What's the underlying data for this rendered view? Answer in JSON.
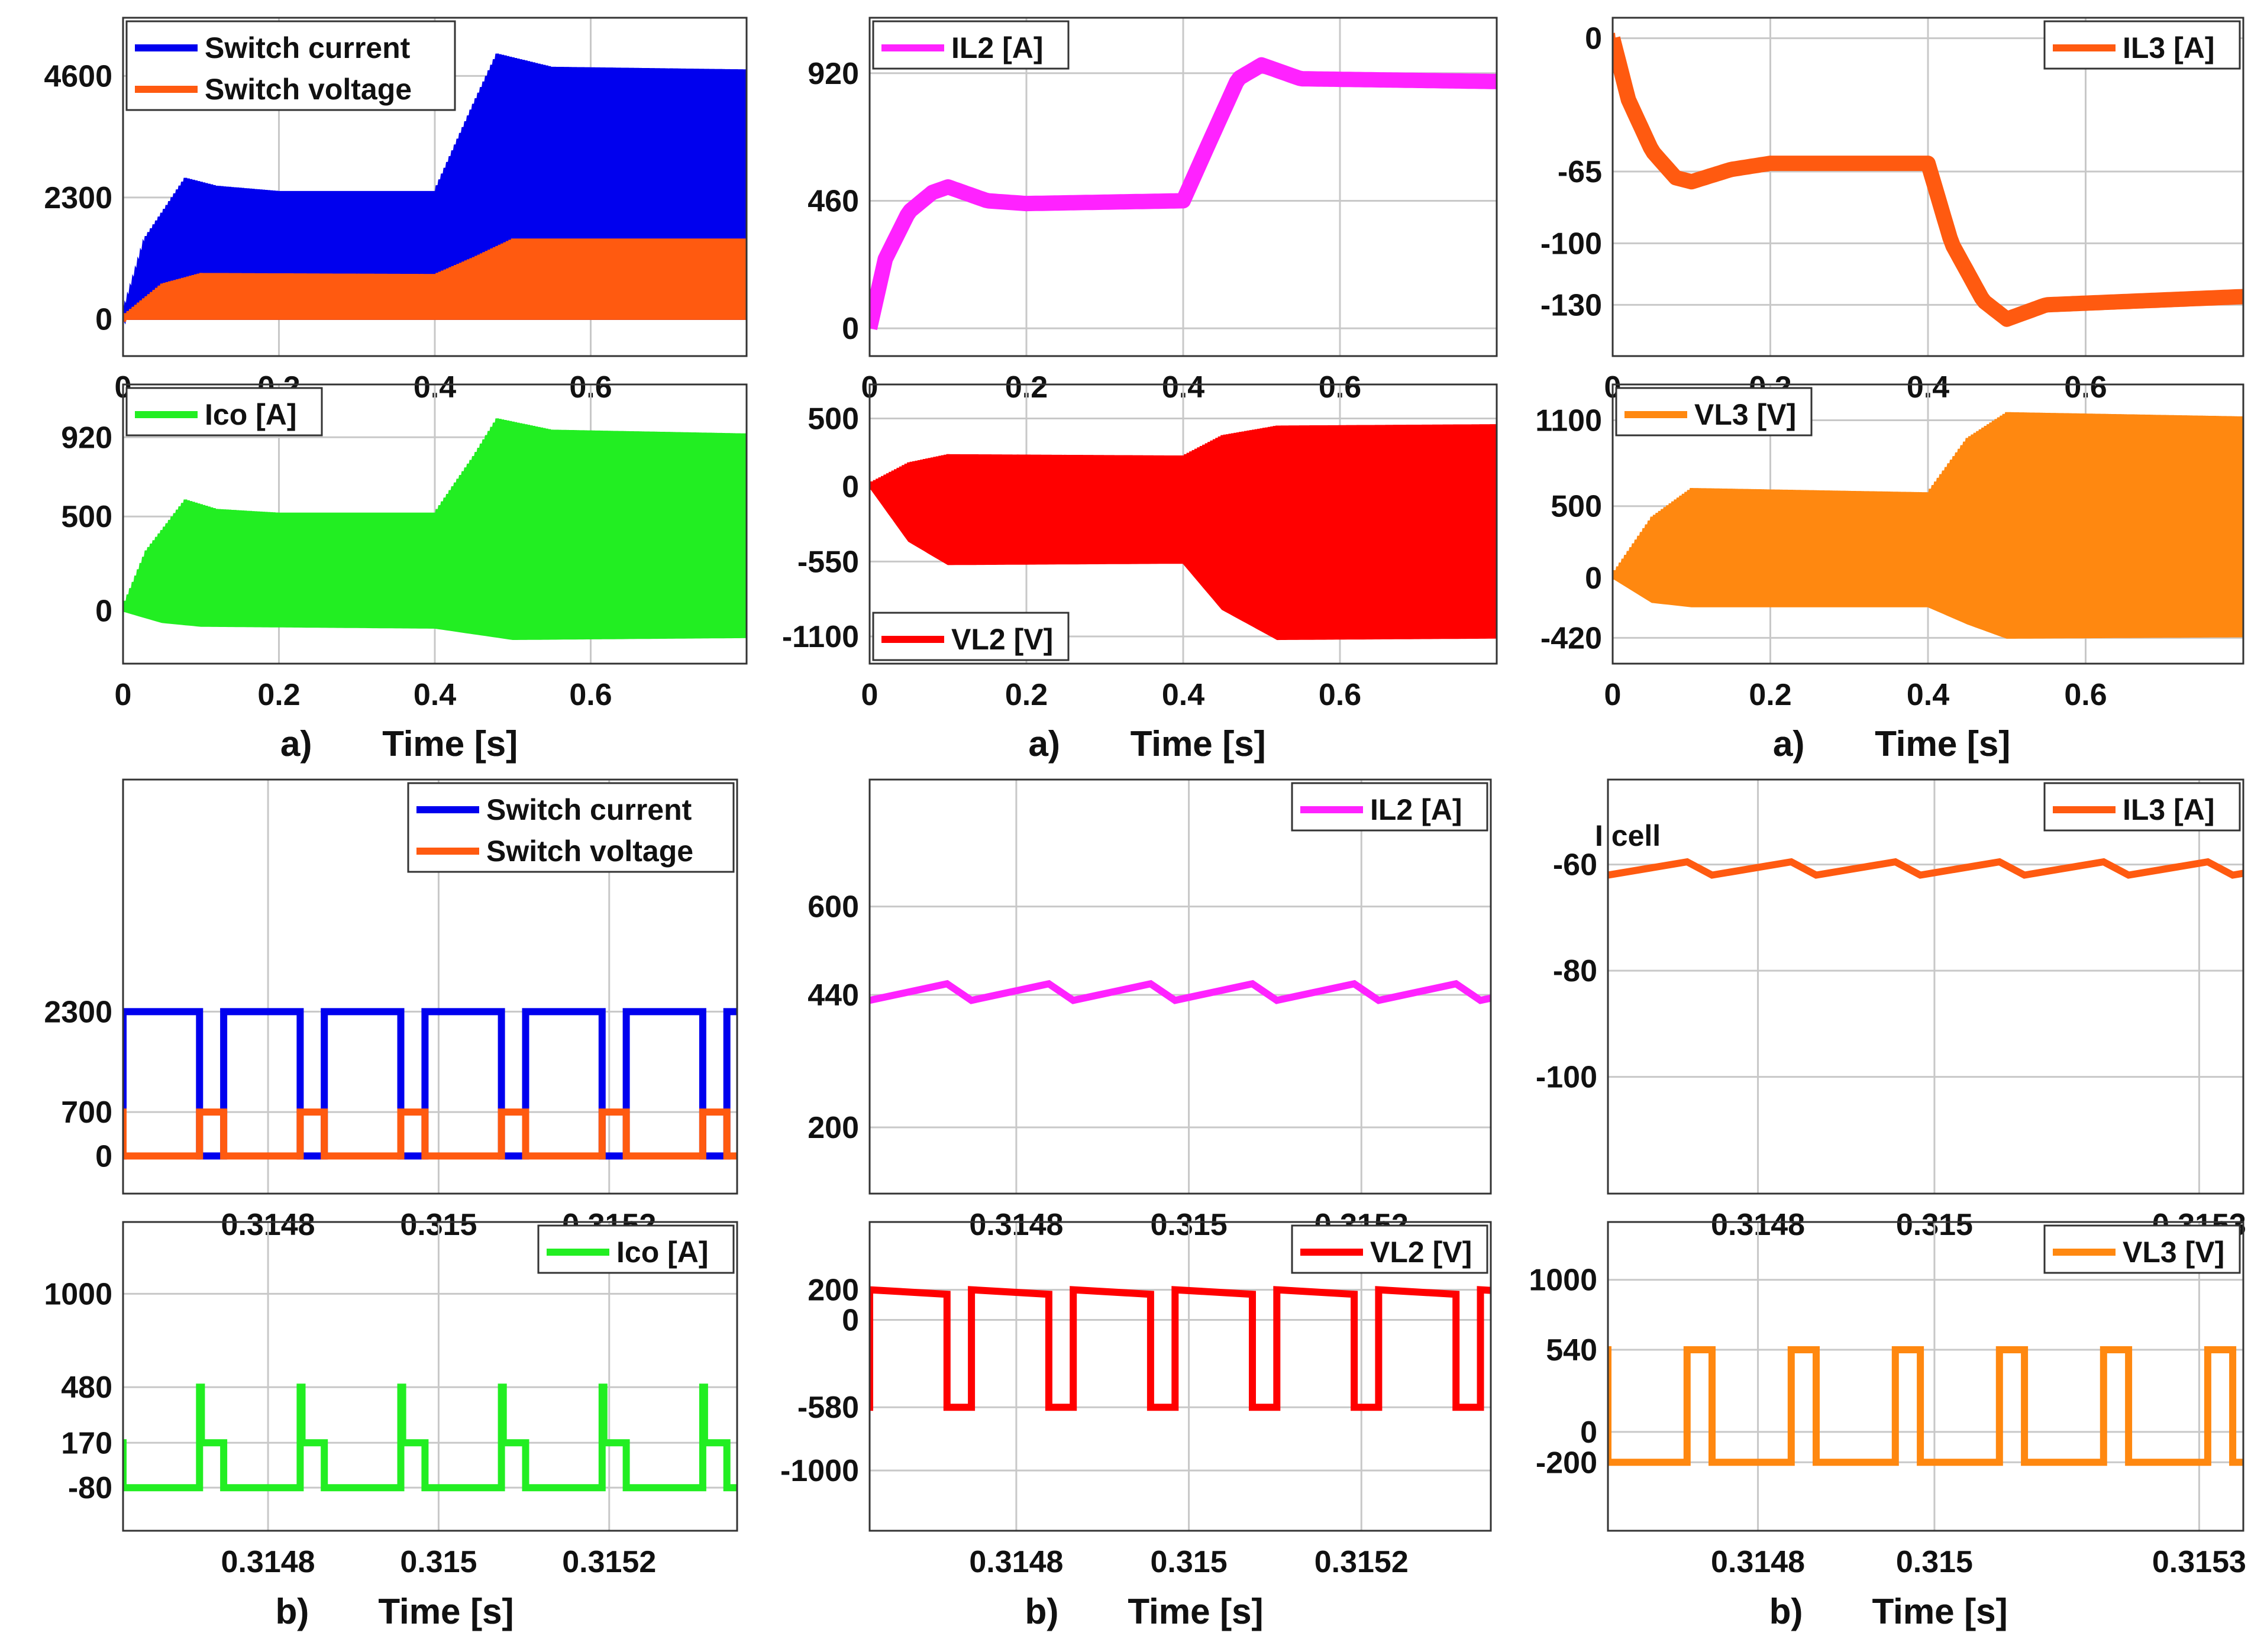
{
  "chart_data": [
    {
      "id": "a1",
      "type": "line",
      "xlim": [
        0,
        0.8
      ],
      "xticks": [
        0,
        0.2,
        0.4,
        0.6
      ],
      "xtick_labels": [
        "0",
        "0.2",
        "0.4",
        "0.6"
      ],
      "yticks": [
        0,
        2300,
        4600
      ],
      "ytick_labels": [
        "0",
        "2300",
        "4600"
      ],
      "ylim": [
        -700,
        5700
      ],
      "grid": true,
      "legend": {
        "position": "top-left",
        "entries": [
          "Switch current",
          "Switch voltage"
        ]
      },
      "caption": [
        "a)",
        "Time [s]"
      ],
      "series": [
        {
          "name": "Switch current",
          "color": "#0000ee",
          "kind": "pwm_band",
          "low": [
            [
              0,
              0
            ],
            [
              0.8,
              0
            ]
          ],
          "high": [
            [
              0,
              0
            ],
            [
              0.03,
              1500
            ],
            [
              0.08,
              2600
            ],
            [
              0.12,
              2450
            ],
            [
              0.2,
              2350
            ],
            [
              0.4,
              2350
            ],
            [
              0.45,
              4000
            ],
            [
              0.48,
              4950
            ],
            [
              0.55,
              4700
            ],
            [
              0.8,
              4650
            ]
          ]
        },
        {
          "name": "Switch voltage",
          "color": "#ff5a10",
          "kind": "pwm_band",
          "low": [
            [
              0,
              0
            ],
            [
              0.8,
              0
            ]
          ],
          "high": [
            [
              0,
              0
            ],
            [
              0.05,
              600
            ],
            [
              0.1,
              800
            ],
            [
              0.4,
              780
            ],
            [
              0.45,
              1100
            ],
            [
              0.5,
              1450
            ],
            [
              0.8,
              1450
            ]
          ]
        }
      ]
    },
    {
      "id": "a2",
      "type": "line",
      "xlim": [
        0,
        0.8
      ],
      "xticks": [
        0,
        0.2,
        0.4,
        0.6
      ],
      "xtick_labels": [
        "0",
        "0.2",
        "0.4",
        "0.6"
      ],
      "yticks": [
        0,
        460,
        920
      ],
      "ytick_labels": [
        "0",
        "460",
        "920"
      ],
      "ylim": [
        -100,
        1120
      ],
      "grid": true,
      "legend": {
        "position": "top-left",
        "entries": [
          "IL2 [A]"
        ]
      },
      "caption": [
        "a)",
        "Time [s]"
      ],
      "series": [
        {
          "name": "IL2 [A]",
          "color": "#ff22ff",
          "kind": "thick_line",
          "points": [
            [
              0,
              0
            ],
            [
              0.02,
              250
            ],
            [
              0.05,
              420
            ],
            [
              0.08,
              490
            ],
            [
              0.1,
              510
            ],
            [
              0.15,
              460
            ],
            [
              0.2,
              450
            ],
            [
              0.4,
              460
            ],
            [
              0.43,
              650
            ],
            [
              0.47,
              900
            ],
            [
              0.5,
              950
            ],
            [
              0.55,
              900
            ],
            [
              0.8,
              890
            ]
          ]
        }
      ]
    },
    {
      "id": "a3",
      "type": "line",
      "xlim": [
        0,
        0.8
      ],
      "xticks": [
        0,
        0.2,
        0.4,
        0.6
      ],
      "xtick_labels": [
        "0",
        "0.2",
        "0.4",
        "0.6"
      ],
      "yticks": [
        0,
        -65,
        -100,
        -130
      ],
      "ytick_labels": [
        "0",
        "-65",
        "-100",
        "-130"
      ],
      "ylim": [
        -155,
        10
      ],
      "grid": true,
      "legend": {
        "position": "top-right",
        "entries": [
          "IL3 [A]"
        ]
      },
      "caption": [
        "a)",
        "Time [s]"
      ],
      "series": [
        {
          "name": "IL3 [A]",
          "color": "#ff5a10",
          "kind": "thick_line",
          "points": [
            [
              0,
              0
            ],
            [
              0.02,
              -30
            ],
            [
              0.05,
              -55
            ],
            [
              0.08,
              -68
            ],
            [
              0.1,
              -70
            ],
            [
              0.15,
              -64
            ],
            [
              0.2,
              -61
            ],
            [
              0.4,
              -61
            ],
            [
              0.43,
              -100
            ],
            [
              0.47,
              -128
            ],
            [
              0.5,
              -137
            ],
            [
              0.55,
              -130
            ],
            [
              0.8,
              -126
            ]
          ]
        }
      ]
    },
    {
      "id": "a4",
      "type": "line",
      "xlim": [
        0,
        0.8
      ],
      "xticks": [
        0,
        0.2,
        0.4,
        0.6
      ],
      "xtick_labels": [
        "0",
        "0.2",
        "0.4",
        "0.6"
      ],
      "yticks": [
        0,
        500,
        920
      ],
      "ytick_labels": [
        "0",
        "500",
        "920"
      ],
      "ylim": [
        -280,
        1200
      ],
      "grid": true,
      "legend": {
        "position": "top-left",
        "entries": [
          "Ico [A]"
        ]
      },
      "caption": [
        "a)",
        "Time [s]"
      ],
      "series": [
        {
          "name": "Ico [A]",
          "color": "#22ee22",
          "kind": "pwm_band",
          "low": [
            [
              0,
              0
            ],
            [
              0.05,
              -60
            ],
            [
              0.1,
              -80
            ],
            [
              0.4,
              -90
            ],
            [
              0.5,
              -150
            ],
            [
              0.8,
              -140
            ]
          ],
          "high": [
            [
              0,
              0
            ],
            [
              0.03,
              300
            ],
            [
              0.08,
              570
            ],
            [
              0.12,
              520
            ],
            [
              0.2,
              500
            ],
            [
              0.4,
              500
            ],
            [
              0.45,
              800
            ],
            [
              0.48,
              1000
            ],
            [
              0.55,
              940
            ],
            [
              0.8,
              920
            ]
          ]
        }
      ]
    },
    {
      "id": "a5",
      "type": "line",
      "xlim": [
        0,
        0.8
      ],
      "xticks": [
        0,
        0.2,
        0.4,
        0.6
      ],
      "xtick_labels": [
        "0",
        "0.2",
        "0.4",
        "0.6"
      ],
      "yticks": [
        500,
        0,
        -550,
        -1100
      ],
      "ytick_labels": [
        "500",
        "0",
        "-550",
        "-1100"
      ],
      "ylim": [
        -1300,
        750
      ],
      "grid": true,
      "legend": {
        "position": "bottom-left",
        "entries": [
          "VL2 [V]"
        ]
      },
      "caption": [
        "a)",
        "Time [s]"
      ],
      "series": [
        {
          "name": "VL2 [V]",
          "color": "#ff0000",
          "kind": "pwm_band",
          "low": [
            [
              0,
              0
            ],
            [
              0.05,
              -400
            ],
            [
              0.1,
              -570
            ],
            [
              0.4,
              -560
            ],
            [
              0.45,
              -900
            ],
            [
              0.52,
              -1120
            ],
            [
              0.8,
              -1110
            ]
          ],
          "high": [
            [
              0,
              0
            ],
            [
              0.05,
              150
            ],
            [
              0.1,
              210
            ],
            [
              0.4,
              200
            ],
            [
              0.45,
              350
            ],
            [
              0.52,
              420
            ],
            [
              0.8,
              430
            ]
          ]
        }
      ]
    },
    {
      "id": "a6",
      "type": "line",
      "xlim": [
        0,
        0.8
      ],
      "xticks": [
        0,
        0.2,
        0.4,
        0.6
      ],
      "xtick_labels": [
        "0",
        "0.2",
        "0.4",
        "0.6"
      ],
      "yticks": [
        1100,
        500,
        0,
        -420
      ],
      "ytick_labels": [
        "1100",
        "500",
        "0",
        "-420"
      ],
      "ylim": [
        -600,
        1350
      ],
      "grid": true,
      "legend": {
        "position": "top-left",
        "entries": [
          "VL3 [V]"
        ]
      },
      "caption": [
        "a)",
        "Time [s]"
      ],
      "series": [
        {
          "name": "VL3 [V]",
          "color": "#ff8810",
          "kind": "pwm_band",
          "low": [
            [
              0,
              0
            ],
            [
              0.05,
              -170
            ],
            [
              0.1,
              -200
            ],
            [
              0.4,
              -200
            ],
            [
              0.45,
              -320
            ],
            [
              0.5,
              -420
            ],
            [
              0.8,
              -410
            ]
          ],
          "high": [
            [
              0,
              0
            ],
            [
              0.05,
              400
            ],
            [
              0.1,
              600
            ],
            [
              0.4,
              570
            ],
            [
              0.45,
              950
            ],
            [
              0.5,
              1130
            ],
            [
              0.8,
              1100
            ]
          ]
        }
      ]
    },
    {
      "id": "b1",
      "type": "line",
      "xlim": [
        0.31463,
        0.31535
      ],
      "xticks": [
        0.3148,
        0.315,
        0.3152
      ],
      "xtick_labels": [
        "0.3148",
        "0.315",
        "0.3152"
      ],
      "yticks": [
        0,
        700,
        2300
      ],
      "ytick_labels": [
        "0",
        "700",
        "2300"
      ],
      "ylim": [
        -600,
        6000
      ],
      "grid": true,
      "legend": {
        "position": "top-right",
        "entries": [
          "Switch current",
          "Switch voltage"
        ]
      },
      "caption": [
        "b)",
        "Time [s]"
      ],
      "period": 0.000118,
      "start": 0.31463,
      "duty": 0.76,
      "series": [
        {
          "name": "Switch current",
          "color": "#0000ee",
          "kind": "square",
          "on_value": 2300,
          "off_value": 0,
          "phase": "on_first"
        },
        {
          "name": "Switch voltage",
          "color": "#ff5a10",
          "kind": "square",
          "on_value": 700,
          "off_value": 0,
          "phase": "off_first"
        }
      ]
    },
    {
      "id": "b2",
      "type": "line",
      "xlim": [
        0.31463,
        0.31535
      ],
      "xticks": [
        0.3148,
        0.315,
        0.3152
      ],
      "xtick_labels": [
        "0.3148",
        "0.315",
        "0.3152"
      ],
      "yticks": [
        600,
        440,
        200
      ],
      "ytick_labels": [
        "600",
        "440",
        "200"
      ],
      "ylim": [
        80,
        830
      ],
      "grid": true,
      "legend": {
        "position": "top-right",
        "entries": [
          "IL2 [A]"
        ]
      },
      "caption": [
        "b)",
        "Time [s]"
      ],
      "period": 0.000118,
      "start": 0.31463,
      "duty": 0.76,
      "series": [
        {
          "name": "IL2 [A]",
          "color": "#ff22ff",
          "kind": "triangle",
          "min": 430,
          "max": 460
        }
      ]
    },
    {
      "id": "b3",
      "type": "line",
      "xlim": [
        0.31463,
        0.31535
      ],
      "xticks": [
        0.3148,
        0.315,
        0.3153
      ],
      "xtick_labels": [
        "0.3148",
        "0.315",
        "0.3153"
      ],
      "yticks": [
        -60,
        -80,
        -100
      ],
      "ytick_labels": [
        "-60",
        "-80",
        "-100"
      ],
      "ylim": [
        -122,
        -44
      ],
      "grid": true,
      "legend": {
        "position": "top-right",
        "entries": [
          "IL3 [A]"
        ]
      },
      "annotation": "I cell",
      "caption": [
        "b)",
        "Time [s]"
      ],
      "period": 0.000118,
      "start": 0.31463,
      "duty": 0.76,
      "series": [
        {
          "name": "IL3 [A]",
          "color": "#ff5a10",
          "kind": "triangle",
          "min": -62,
          "max": -59.5
        }
      ]
    },
    {
      "id": "b4",
      "type": "line",
      "xlim": [
        0.31463,
        0.31535
      ],
      "xticks": [
        0.3148,
        0.315,
        0.3152
      ],
      "xtick_labels": [
        "0.3148",
        "0.315",
        "0.3152"
      ],
      "yticks": [
        1000,
        480,
        170,
        -80
      ],
      "ytick_labels": [
        "1000",
        "480",
        "170",
        "-80"
      ],
      "ylim": [
        -320,
        1400
      ],
      "grid": true,
      "legend": {
        "position": "top-right",
        "entries": [
          "Ico [A]"
        ]
      },
      "caption": [
        "b)",
        "Time [s]"
      ],
      "period": 0.000118,
      "start": 0.31463,
      "duty": 0.76,
      "series": [
        {
          "name": "Ico [A]",
          "color": "#22ee22",
          "kind": "spike",
          "base": -80,
          "spike": 480,
          "plateau": 170
        }
      ]
    },
    {
      "id": "b5",
      "type": "line",
      "xlim": [
        0.31463,
        0.31535
      ],
      "xticks": [
        0.3148,
        0.315,
        0.3152
      ],
      "xtick_labels": [
        "0.3148",
        "0.315",
        "0.3152"
      ],
      "yticks": [
        200,
        0,
        -580,
        -1000
      ],
      "ytick_labels": [
        "200",
        "0",
        "-580",
        "-1000"
      ],
      "ylim": [
        -1400,
        650
      ],
      "grid": true,
      "legend": {
        "position": "top-right",
        "entries": [
          "VL2 [V]"
        ]
      },
      "caption": [
        "b)",
        "Time [s]"
      ],
      "period": 0.000118,
      "start": 0.31463,
      "duty": 0.76,
      "series": [
        {
          "name": "VL2 [V]",
          "color": "#ff0000",
          "kind": "square_slope",
          "on_start": 200,
          "on_end": 170,
          "off_value": -580,
          "phase": "on_first"
        }
      ]
    },
    {
      "id": "b6",
      "type": "line",
      "xlim": [
        0.31463,
        0.31535
      ],
      "xticks": [
        0.3148,
        0.315,
        0.3153
      ],
      "xtick_labels": [
        "0.3148",
        "0.315",
        "0.3153"
      ],
      "yticks": [
        1000,
        540,
        0,
        -200
      ],
      "ytick_labels": [
        "1000",
        "540",
        "0",
        "-200"
      ],
      "ylim": [
        -650,
        1380
      ],
      "grid": true,
      "legend": {
        "position": "top-right",
        "entries": [
          "VL3 [V]"
        ]
      },
      "caption": [
        "b)",
        "Time [s]"
      ],
      "period": 0.000118,
      "start": 0.31463,
      "duty": 0.76,
      "series": [
        {
          "name": "VL3 [V]",
          "color": "#ff8810",
          "kind": "square",
          "on_value": -200,
          "off_value": 540,
          "phase": "on_first"
        }
      ]
    }
  ]
}
